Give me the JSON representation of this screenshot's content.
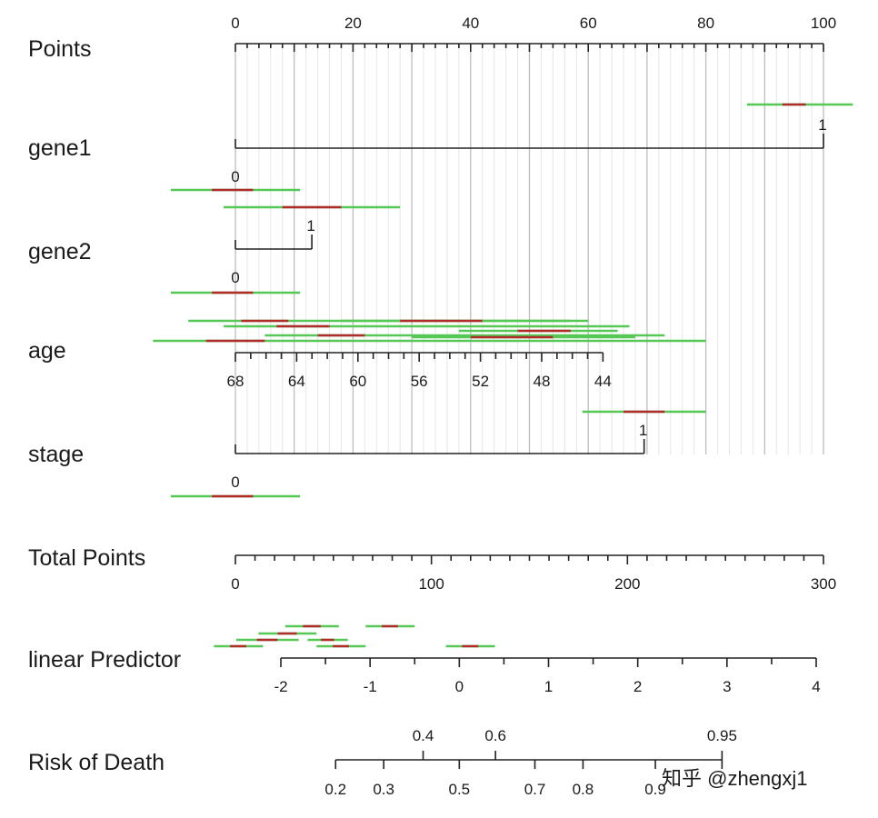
{
  "chart_data": {
    "type": "nomogram",
    "title": "",
    "colors": {
      "axis": "#222222",
      "grid": "#c8c8c8",
      "ci": "#55c855",
      "ci_core": "#b22a2a"
    },
    "rows": {
      "points": {
        "label": "Points",
        "ticks": [
          "0",
          "20",
          "40",
          "60",
          "80",
          "100"
        ],
        "range": [
          0,
          100
        ]
      },
      "gene1": {
        "label": "gene1",
        "levels": [
          {
            "name": "0",
            "points": 0
          },
          {
            "name": "1",
            "points": 100
          }
        ]
      },
      "gene2": {
        "label": "gene2",
        "levels": [
          {
            "name": "0",
            "points": 0
          },
          {
            "name": "1",
            "points": 13
          }
        ]
      },
      "age": {
        "label": "age",
        "ticks": [
          "68",
          "64",
          "60",
          "56",
          "52",
          "48",
          "44"
        ],
        "points_range": [
          0,
          62.5
        ]
      },
      "stage": {
        "label": "stage",
        "levels": [
          {
            "name": "0",
            "points": 0
          },
          {
            "name": "1",
            "points": 69.5
          }
        ]
      },
      "total_points": {
        "label": "Total Points",
        "ticks": [
          "0",
          "100",
          "200",
          "300"
        ],
        "range": [
          0,
          300
        ]
      },
      "linear_predictor": {
        "label": "linear Predictor",
        "ticks": [
          "-2",
          "-1",
          "0",
          "1",
          "2",
          "3",
          "4"
        ],
        "range": [
          -2,
          4
        ]
      },
      "risk": {
        "label": "Risk of Death",
        "upper_ticks": [
          {
            "label": "0.4",
            "value": 0.4
          },
          {
            "label": "0.6",
            "value": 0.6
          },
          {
            "label": "0.95",
            "value": 0.95
          }
        ],
        "lower_ticks": [
          {
            "label": "0.2",
            "value": 0.2
          },
          {
            "label": "0.3",
            "value": 0.3
          },
          {
            "label": "0.5",
            "value": 0.5
          },
          {
            "label": "0.7",
            "value": 0.7
          },
          {
            "label": "0.8",
            "value": 0.8
          },
          {
            "label": "0.9",
            "value": 0.9
          }
        ]
      }
    },
    "ci_bars": {
      "gene1_1": [
        [
          87,
          93,
          97,
          105
        ]
      ],
      "gene1_0": [
        [
          -11,
          -4,
          3,
          11
        ]
      ],
      "gene2_1": [
        [
          -2,
          8,
          18,
          28
        ]
      ],
      "gene2_0": [
        [
          -11,
          -4,
          3,
          11
        ]
      ],
      "age": [
        [
          -8,
          1,
          9,
          60
        ],
        [
          -2,
          7,
          16,
          67
        ],
        [
          -14,
          -5,
          5,
          80
        ],
        [
          5,
          14,
          22,
          73
        ],
        [
          18,
          28,
          42,
          57
        ],
        [
          38,
          48,
          57,
          65
        ],
        [
          30,
          40,
          54,
          68
        ]
      ],
      "stage_1": [
        [
          59,
          66,
          73,
          80
        ]
      ],
      "stage_0": [
        [
          -11,
          -4,
          3,
          11
        ]
      ],
      "linear_predictor": [
        [
          -1.95,
          -1.35
        ],
        [
          -2.25,
          -1.6
        ],
        [
          -2.75,
          -2.2
        ],
        [
          -2.5,
          -1.8
        ],
        [
          -1.7,
          -1.25
        ],
        [
          -1.6,
          -1.05
        ],
        [
          -1.05,
          -0.5
        ],
        [
          -0.15,
          0.4
        ]
      ]
    }
  },
  "watermark": "知乎 @zhengxj1"
}
